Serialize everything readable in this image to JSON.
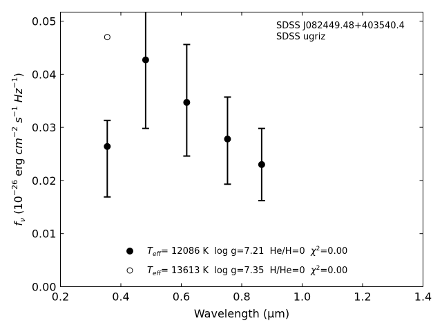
{
  "chart_data": {
    "type": "scatter",
    "xlabel": "Wavelength (μm)",
    "ylabel": "f_ν (10^-26 erg cm^-2 s^-1 Hz^-1)",
    "xlim": [
      0.2,
      1.4
    ],
    "ylim": [
      0.0,
      0.0517
    ],
    "x_ticks": [
      0.2,
      0.4,
      0.6,
      0.8,
      1.0,
      1.2,
      1.4
    ],
    "x_tick_labels": [
      "0.2",
      "0.4",
      "0.6",
      "0.8",
      "1.0",
      "1.2",
      "1.4"
    ],
    "y_ticks": [
      0.0,
      0.01,
      0.02,
      0.03,
      0.04,
      0.05
    ],
    "y_tick_labels": [
      "0.00",
      "0.01",
      "0.02",
      "0.03",
      "0.04",
      "0.05"
    ],
    "grid": false,
    "legend_position": "bottom-center",
    "annotations": [
      "SDSS J082449.48+403540.4",
      "SDSS ugriz"
    ],
    "observed": {
      "x": [
        0.355,
        0.482,
        0.618,
        0.753,
        0.866
      ],
      "y": [
        0.0264,
        0.0427,
        0.0347,
        0.0278,
        0.023
      ],
      "yerr_low": [
        0.0169,
        0.0298,
        0.0246,
        0.0193,
        0.0162
      ],
      "yerr_high": [
        0.0313,
        0.0517,
        0.0456,
        0.0357,
        0.0298
      ]
    },
    "series": [
      {
        "marker": "filled-circle",
        "color": "#000000",
        "label_parts": [
          "T",
          "eff",
          "= 12086 K  log g=7.21  He/H=0  ",
          "χ",
          "2",
          "=0.00"
        ],
        "x": [
          0.355,
          0.482,
          0.618,
          0.753,
          0.866
        ],
        "y": [
          0.0264,
          0.0427,
          0.0347,
          0.0278,
          0.023
        ]
      },
      {
        "marker": "open-circle",
        "color": "#000000",
        "label_parts": [
          "T",
          "eff",
          "= 13613 K  log g=7.35  H/He=0  ",
          "χ",
          "2",
          "=0.00"
        ],
        "x": [
          0.355
        ],
        "y": [
          0.047
        ]
      }
    ]
  }
}
